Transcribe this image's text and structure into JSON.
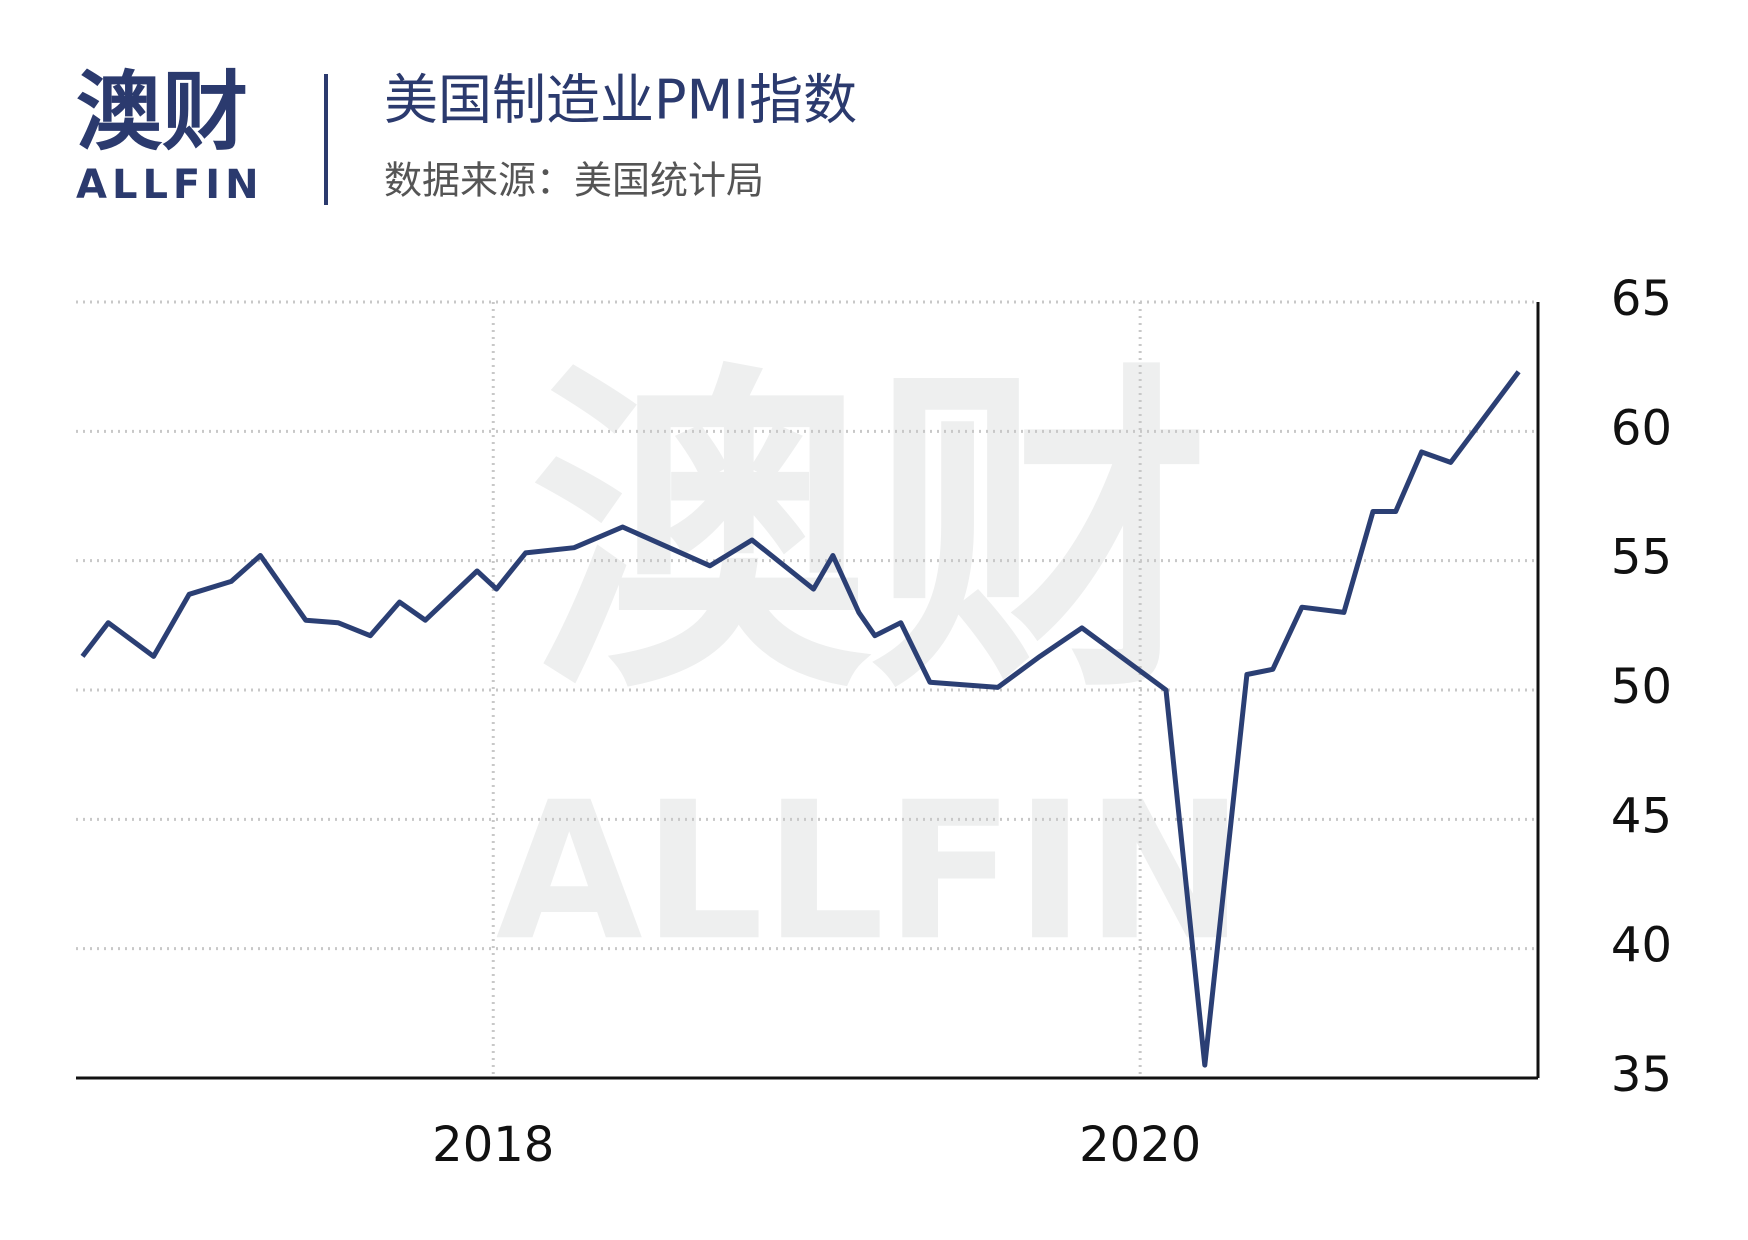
{
  "brand": {
    "name": "澳财",
    "latin": "ALLFIN"
  },
  "chart_data": {
    "type": "line",
    "title": "美国制造业PMI指数",
    "subtitle": "数据来源：美国统计局",
    "x": [
      2016.73,
      2016.81,
      2016.95,
      2017.06,
      2017.19,
      2017.28,
      2017.42,
      2017.52,
      2017.62,
      2017.71,
      2017.79,
      2017.95,
      2018.01,
      2018.1,
      2018.25,
      2018.4,
      2018.67,
      2018.8,
      2018.99,
      2019.05,
      2019.13,
      2019.18,
      2019.26,
      2019.35,
      2019.56,
      2019.69,
      2019.82,
      2020.08,
      2020.2,
      2020.33,
      2020.41,
      2020.5,
      2020.63,
      2020.72,
      2020.79,
      2020.87,
      2020.96,
      2021.17
    ],
    "values": [
      51.3,
      52.6,
      51.3,
      53.7,
      54.2,
      55.2,
      52.7,
      52.6,
      52.1,
      53.4,
      52.7,
      54.6,
      53.9,
      55.3,
      55.5,
      56.3,
      54.8,
      55.8,
      53.9,
      55.2,
      53.0,
      52.1,
      52.6,
      50.3,
      50.1,
      51.3,
      52.4,
      50.0,
      35.5,
      50.6,
      50.8,
      53.2,
      53.0,
      56.9,
      56.9,
      59.2,
      58.8,
      62.3
    ],
    "color": "#2b3f74",
    "xlim": [
      2016.71,
      2021.23
    ],
    "xticks": [
      2018,
      2020
    ],
    "ylim": [
      35,
      65
    ],
    "yticks": [
      35,
      40,
      45,
      50,
      55,
      60,
      65
    ],
    "grid": true
  }
}
